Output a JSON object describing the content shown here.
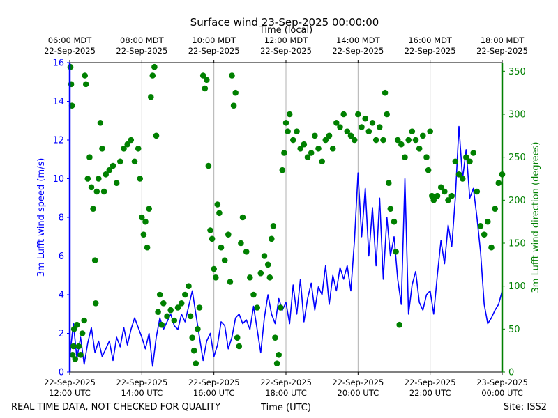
{
  "colors": {
    "speed": "#0000ff",
    "direction": "#008000",
    "grid": "#b0b0b0",
    "text": "#000000"
  },
  "labels": {
    "footer_left": "REAL TIME DATA, NOT CHECKED FOR QUALITY",
    "footer_right": "Site: ISS2"
  },
  "chart_data": {
    "type": "line",
    "title": "Surface wind 23-Sep-2025 00:00:00",
    "xlabel": "Time (UTC)",
    "top_xlabel": "Time (local)",
    "ylabel_left": "3m Lufft wind speed (m/s)",
    "ylabel_right": "3m Lufft wind direction (degrees)",
    "xlim_hours_utc": [
      12,
      24
    ],
    "ylim_left": [
      0,
      16
    ],
    "ylim_right": [
      0,
      360
    ],
    "grid": "vertical",
    "bottom_ticks": [
      {
        "h": 12,
        "date": "22-Sep-2025",
        "time": "12:00 UTC"
      },
      {
        "h": 14,
        "date": "22-Sep-2025",
        "time": "14:00 UTC"
      },
      {
        "h": 16,
        "date": "22-Sep-2025",
        "time": "16:00 UTC"
      },
      {
        "h": 18,
        "date": "22-Sep-2025",
        "time": "18:00 UTC"
      },
      {
        "h": 20,
        "date": "22-Sep-2025",
        "time": "20:00 UTC"
      },
      {
        "h": 22,
        "date": "22-Sep-2025",
        "time": "22:00 UTC"
      },
      {
        "h": 24,
        "date": "23-Sep-2025",
        "time": "00:00 UTC"
      }
    ],
    "top_ticks": [
      {
        "h": 12,
        "time": "06:00 MDT",
        "date": "22-Sep-2025"
      },
      {
        "h": 14,
        "time": "08:00 MDT",
        "date": "22-Sep-2025"
      },
      {
        "h": 16,
        "time": "10:00 MDT",
        "date": "22-Sep-2025"
      },
      {
        "h": 18,
        "time": "12:00 MDT",
        "date": "22-Sep-2025"
      },
      {
        "h": 20,
        "time": "14:00 MDT",
        "date": "22-Sep-2025"
      },
      {
        "h": 22,
        "time": "16:00 MDT",
        "date": "22-Sep-2025"
      },
      {
        "h": 24,
        "time": "18:00 MDT",
        "date": "22-Sep-2025"
      }
    ],
    "left_ticks": [
      0,
      2,
      4,
      6,
      8,
      10,
      12,
      14,
      16
    ],
    "right_ticks": [
      0,
      50,
      100,
      150,
      200,
      250,
      300,
      350
    ],
    "series": [
      {
        "name": "wind_speed",
        "unit": "m/s",
        "style": "line",
        "points": [
          [
            12.0,
            0.8
          ],
          [
            12.1,
            2.5
          ],
          [
            12.2,
            0.7
          ],
          [
            12.3,
            1.8
          ],
          [
            12.4,
            0.4
          ],
          [
            12.5,
            1.5
          ],
          [
            12.6,
            2.3
          ],
          [
            12.7,
            1.0
          ],
          [
            12.8,
            1.6
          ],
          [
            12.9,
            0.8
          ],
          [
            13.0,
            1.2
          ],
          [
            13.1,
            1.6
          ],
          [
            13.2,
            0.6
          ],
          [
            13.3,
            1.8
          ],
          [
            13.4,
            1.3
          ],
          [
            13.5,
            2.3
          ],
          [
            13.6,
            1.4
          ],
          [
            13.7,
            2.2
          ],
          [
            13.8,
            2.8
          ],
          [
            13.9,
            2.3
          ],
          [
            14.0,
            1.8
          ],
          [
            14.1,
            1.2
          ],
          [
            14.2,
            2.0
          ],
          [
            14.3,
            0.3
          ],
          [
            14.4,
            1.8
          ],
          [
            14.5,
            2.8
          ],
          [
            14.6,
            2.2
          ],
          [
            14.7,
            2.6
          ],
          [
            14.8,
            3.0
          ],
          [
            14.9,
            2.4
          ],
          [
            15.0,
            2.2
          ],
          [
            15.1,
            3.0
          ],
          [
            15.2,
            2.6
          ],
          [
            15.3,
            3.4
          ],
          [
            15.4,
            4.2
          ],
          [
            15.5,
            3.0
          ],
          [
            15.6,
            1.8
          ],
          [
            15.7,
            0.6
          ],
          [
            15.8,
            1.6
          ],
          [
            15.9,
            2.0
          ],
          [
            16.0,
            0.8
          ],
          [
            16.1,
            1.4
          ],
          [
            16.2,
            2.6
          ],
          [
            16.3,
            2.4
          ],
          [
            16.4,
            1.2
          ],
          [
            16.5,
            1.8
          ],
          [
            16.6,
            2.8
          ],
          [
            16.7,
            3.0
          ],
          [
            16.8,
            2.5
          ],
          [
            16.9,
            2.7
          ],
          [
            17.0,
            2.2
          ],
          [
            17.1,
            3.4
          ],
          [
            17.2,
            2.2
          ],
          [
            17.3,
            1.0
          ],
          [
            17.4,
            2.8
          ],
          [
            17.5,
            4.0
          ],
          [
            17.6,
            3.0
          ],
          [
            17.7,
            2.5
          ],
          [
            17.8,
            3.8
          ],
          [
            17.9,
            3.2
          ],
          [
            18.0,
            3.6
          ],
          [
            18.1,
            2.5
          ],
          [
            18.2,
            4.5
          ],
          [
            18.3,
            3.0
          ],
          [
            18.4,
            4.8
          ],
          [
            18.5,
            2.6
          ],
          [
            18.6,
            3.8
          ],
          [
            18.7,
            4.6
          ],
          [
            18.8,
            3.2
          ],
          [
            18.9,
            4.4
          ],
          [
            19.0,
            4.0
          ],
          [
            19.1,
            5.5
          ],
          [
            19.2,
            3.5
          ],
          [
            19.3,
            5.0
          ],
          [
            19.4,
            4.2
          ],
          [
            19.5,
            5.4
          ],
          [
            19.6,
            4.8
          ],
          [
            19.7,
            5.5
          ],
          [
            19.8,
            4.2
          ],
          [
            19.9,
            6.8
          ],
          [
            20.0,
            10.3
          ],
          [
            20.1,
            7.0
          ],
          [
            20.2,
            9.5
          ],
          [
            20.3,
            6.0
          ],
          [
            20.4,
            8.5
          ],
          [
            20.5,
            5.5
          ],
          [
            20.6,
            9.0
          ],
          [
            20.7,
            4.8
          ],
          [
            20.8,
            8.0
          ],
          [
            20.9,
            6.0
          ],
          [
            21.0,
            7.0
          ],
          [
            21.1,
            4.8
          ],
          [
            21.2,
            3.5
          ],
          [
            21.3,
            10.0
          ],
          [
            21.4,
            3.0
          ],
          [
            21.5,
            4.5
          ],
          [
            21.6,
            5.2
          ],
          [
            21.7,
            3.6
          ],
          [
            21.8,
            3.2
          ],
          [
            21.9,
            4.0
          ],
          [
            22.0,
            4.2
          ],
          [
            22.1,
            3.0
          ],
          [
            22.2,
            5.0
          ],
          [
            22.3,
            6.8
          ],
          [
            22.4,
            5.6
          ],
          [
            22.5,
            7.6
          ],
          [
            22.6,
            6.5
          ],
          [
            22.7,
            9.0
          ],
          [
            22.8,
            12.7
          ],
          [
            22.9,
            10.0
          ],
          [
            23.0,
            11.5
          ],
          [
            23.1,
            9.0
          ],
          [
            23.2,
            9.5
          ],
          [
            23.3,
            8.0
          ],
          [
            23.4,
            6.2
          ],
          [
            23.5,
            3.5
          ],
          [
            23.6,
            2.5
          ],
          [
            23.7,
            2.8
          ],
          [
            23.8,
            3.2
          ],
          [
            23.9,
            3.5
          ],
          [
            24.0,
            4.2
          ]
        ]
      },
      {
        "name": "wind_direction",
        "unit": "degrees",
        "style": "markers",
        "points": [
          [
            12.02,
            355
          ],
          [
            12.04,
            335
          ],
          [
            12.06,
            310
          ],
          [
            12.08,
            20
          ],
          [
            12.1,
            30
          ],
          [
            12.12,
            50
          ],
          [
            12.15,
            15
          ],
          [
            12.2,
            55
          ],
          [
            12.25,
            30
          ],
          [
            12.3,
            20
          ],
          [
            12.35,
            45
          ],
          [
            12.4,
            60
          ],
          [
            12.42,
            345
          ],
          [
            12.45,
            335
          ],
          [
            12.5,
            225
          ],
          [
            12.55,
            250
          ],
          [
            12.6,
            215
          ],
          [
            12.65,
            190
          ],
          [
            12.7,
            130
          ],
          [
            12.72,
            80
          ],
          [
            12.75,
            210
          ],
          [
            12.8,
            225
          ],
          [
            12.85,
            290
          ],
          [
            12.9,
            260
          ],
          [
            12.95,
            210
          ],
          [
            13.0,
            230
          ],
          [
            13.1,
            235
          ],
          [
            13.2,
            240
          ],
          [
            13.3,
            220
          ],
          [
            13.4,
            245
          ],
          [
            13.5,
            260
          ],
          [
            13.6,
            265
          ],
          [
            13.7,
            270
          ],
          [
            13.8,
            245
          ],
          [
            13.9,
            260
          ],
          [
            13.95,
            225
          ],
          [
            14.0,
            180
          ],
          [
            14.05,
            160
          ],
          [
            14.1,
            175
          ],
          [
            14.15,
            145
          ],
          [
            14.2,
            190
          ],
          [
            14.25,
            320
          ],
          [
            14.3,
            345
          ],
          [
            14.35,
            355
          ],
          [
            14.4,
            275
          ],
          [
            14.45,
            70
          ],
          [
            14.5,
            90
          ],
          [
            14.55,
            55
          ],
          [
            14.6,
            80
          ],
          [
            14.7,
            65
          ],
          [
            14.8,
            72
          ],
          [
            14.9,
            60
          ],
          [
            15.0,
            75
          ],
          [
            15.1,
            80
          ],
          [
            15.2,
            90
          ],
          [
            15.3,
            100
          ],
          [
            15.35,
            65
          ],
          [
            15.4,
            40
          ],
          [
            15.45,
            25
          ],
          [
            15.5,
            10
          ],
          [
            15.55,
            50
          ],
          [
            15.6,
            75
          ],
          [
            15.7,
            345
          ],
          [
            15.75,
            330
          ],
          [
            15.8,
            340
          ],
          [
            15.85,
            240
          ],
          [
            15.9,
            165
          ],
          [
            15.95,
            155
          ],
          [
            16.0,
            120
          ],
          [
            16.05,
            110
          ],
          [
            16.1,
            195
          ],
          [
            16.15,
            185
          ],
          [
            16.2,
            145
          ],
          [
            16.3,
            130
          ],
          [
            16.4,
            160
          ],
          [
            16.45,
            105
          ],
          [
            16.5,
            345
          ],
          [
            16.55,
            310
          ],
          [
            16.6,
            325
          ],
          [
            16.65,
            40
          ],
          [
            16.7,
            30
          ],
          [
            16.75,
            150
          ],
          [
            16.8,
            180
          ],
          [
            16.9,
            140
          ],
          [
            17.0,
            110
          ],
          [
            17.1,
            90
          ],
          [
            17.2,
            75
          ],
          [
            17.3,
            115
          ],
          [
            17.4,
            135
          ],
          [
            17.5,
            125
          ],
          [
            17.55,
            110
          ],
          [
            17.6,
            155
          ],
          [
            17.65,
            170
          ],
          [
            17.7,
            40
          ],
          [
            17.75,
            10
          ],
          [
            17.8,
            20
          ],
          [
            17.85,
            75
          ],
          [
            17.9,
            235
          ],
          [
            17.95,
            255
          ],
          [
            18.0,
            290
          ],
          [
            18.05,
            280
          ],
          [
            18.1,
            300
          ],
          [
            18.2,
            270
          ],
          [
            18.3,
            280
          ],
          [
            18.4,
            260
          ],
          [
            18.5,
            265
          ],
          [
            18.6,
            250
          ],
          [
            18.7,
            255
          ],
          [
            18.8,
            275
          ],
          [
            18.9,
            260
          ],
          [
            19.0,
            245
          ],
          [
            19.1,
            270
          ],
          [
            19.2,
            275
          ],
          [
            19.3,
            260
          ],
          [
            19.4,
            290
          ],
          [
            19.5,
            285
          ],
          [
            19.6,
            300
          ],
          [
            19.7,
            280
          ],
          [
            19.8,
            275
          ],
          [
            19.9,
            270
          ],
          [
            20.0,
            300
          ],
          [
            20.1,
            285
          ],
          [
            20.2,
            295
          ],
          [
            20.3,
            280
          ],
          [
            20.4,
            290
          ],
          [
            20.5,
            270
          ],
          [
            20.6,
            285
          ],
          [
            20.7,
            270
          ],
          [
            20.75,
            325
          ],
          [
            20.8,
            300
          ],
          [
            20.85,
            220
          ],
          [
            20.9,
            190
          ],
          [
            21.0,
            175
          ],
          [
            21.05,
            140
          ],
          [
            21.1,
            270
          ],
          [
            21.15,
            55
          ],
          [
            21.2,
            265
          ],
          [
            21.3,
            250
          ],
          [
            21.4,
            270
          ],
          [
            21.5,
            280
          ],
          [
            21.6,
            270
          ],
          [
            21.7,
            260
          ],
          [
            21.8,
            275
          ],
          [
            21.9,
            250
          ],
          [
            21.95,
            235
          ],
          [
            22.0,
            280
          ],
          [
            22.05,
            205
          ],
          [
            22.1,
            200
          ],
          [
            22.2,
            205
          ],
          [
            22.3,
            215
          ],
          [
            22.4,
            210
          ],
          [
            22.5,
            200
          ],
          [
            22.6,
            205
          ],
          [
            22.7,
            245
          ],
          [
            22.8,
            230
          ],
          [
            22.9,
            225
          ],
          [
            23.0,
            250
          ],
          [
            23.1,
            245
          ],
          [
            23.2,
            255
          ],
          [
            23.3,
            210
          ],
          [
            23.4,
            170
          ],
          [
            23.5,
            160
          ],
          [
            23.6,
            175
          ],
          [
            23.7,
            145
          ],
          [
            23.8,
            190
          ],
          [
            23.9,
            220
          ],
          [
            24.0,
            230
          ]
        ]
      }
    ]
  }
}
